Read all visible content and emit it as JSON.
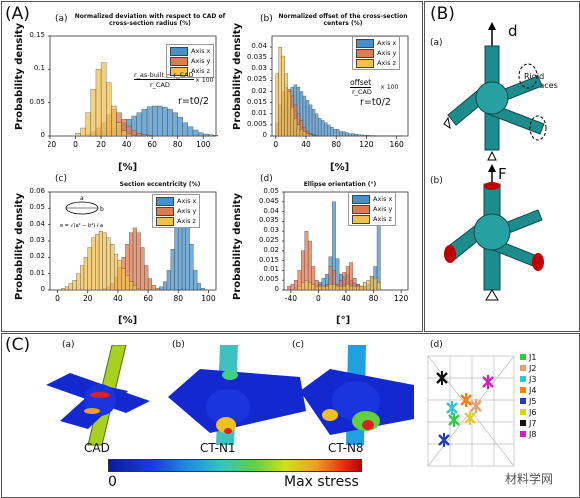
{
  "panel_labels": {
    "A": "(A)",
    "B": "(B)",
    "C": "(C)"
  },
  "sub_labels": {
    "a": "(a)",
    "b": "(b)",
    "c": "(c)",
    "d": "(d)"
  },
  "colors": {
    "x": "#4a90c8",
    "y": "#e07a50",
    "z": "#f0c050"
  },
  "legend": [
    "Axis x",
    "Axis y",
    "Axis z"
  ],
  "axes": {
    "ylabel": "Probability density",
    "xlabel_pct": "[%]",
    "xlabel_deg": "[°]"
  },
  "chart_data": [
    {
      "type": "bar",
      "title": "Normalized deviation with respect to CAD of cross-section radius (%)",
      "xlabel": "[%]",
      "ylabel": "Probability density",
      "xlim": [
        -20,
        110
      ],
      "ylim": [
        0,
        0.15
      ],
      "xticks": [
        "-20",
        "0",
        "20",
        "40",
        "60",
        "80",
        "100"
      ],
      "yticks": [
        "0",
        "0.05",
        "0.1",
        "0.15"
      ],
      "annotation": "r=t0/2",
      "formula": {
        "numerator": "r_as-built − r_CAD",
        "denominator": "r_CAD",
        "factor": "× 100"
      },
      "bin_start": -20,
      "bin_width": 4,
      "series": [
        {
          "name": "Axis x",
          "values": [
            0,
            0,
            0,
            0,
            0,
            0,
            0,
            0,
            0,
            0.002,
            0.005,
            0.008,
            0.012,
            0.016,
            0.02,
            0.025,
            0.03,
            0.035,
            0.04,
            0.044,
            0.045,
            0.045,
            0.043,
            0.04,
            0.035,
            0.028,
            0.02,
            0.014,
            0.009,
            0.005,
            0.003,
            0.002,
            0.001
          ]
        },
        {
          "name": "Axis y",
          "values": [
            0,
            0,
            0,
            0,
            0,
            0,
            0,
            0.002,
            0.006,
            0.012,
            0.02,
            0.032,
            0.04,
            0.035,
            0.025,
            0.015,
            0.008,
            0.004,
            0.002,
            0.001,
            0,
            0,
            0,
            0,
            0,
            0,
            0,
            0,
            0,
            0,
            0,
            0,
            0
          ]
        },
        {
          "name": "Axis z",
          "values": [
            0,
            0,
            0,
            0,
            0,
            0.004,
            0.012,
            0.035,
            0.07,
            0.1,
            0.11,
            0.08,
            0.045,
            0.02,
            0.008,
            0.003,
            0.001,
            0,
            0,
            0,
            0,
            0,
            0,
            0,
            0,
            0,
            0,
            0,
            0,
            0,
            0,
            0,
            0
          ]
        }
      ]
    },
    {
      "type": "bar",
      "title": "Normalized offset of the cross-section centers (%)",
      "xlabel": "[%]",
      "ylabel": "Probability density",
      "xlim": [
        -5,
        175
      ],
      "ylim": [
        0,
        0.045
      ],
      "xticks": [
        "0",
        "40",
        "80",
        "120",
        "160"
      ],
      "yticks": [
        "0",
        "0.005",
        "0.01",
        "0.015",
        "0.02",
        "0.025",
        "0.03",
        "0.035",
        "0.04"
      ],
      "annotation": "r=t0/2",
      "formula": {
        "numerator": "offset",
        "denominator": "r_CAD",
        "factor": "× 100"
      },
      "bin_start": 0,
      "bin_width": 4,
      "series": [
        {
          "name": "Axis x",
          "values": [
            0.003,
            0.008,
            0.012,
            0.016,
            0.02,
            0.022,
            0.023,
            0.022,
            0.02,
            0.018,
            0.016,
            0.014,
            0.012,
            0.01,
            0.008,
            0.007,
            0.006,
            0.005,
            0.004,
            0.003,
            0.003,
            0.002,
            0.002,
            0.0015,
            0.001,
            0.001,
            0.0008,
            0.0006,
            0.0005,
            0.0004,
            0.0003,
            0.0002,
            0.0002,
            0.0001,
            0.0001,
            0.0001,
            0.0001,
            0.0001,
            0.0001,
            0.0001,
            0.0001,
            0.0001
          ]
        },
        {
          "name": "Axis y",
          "values": [
            0.006,
            0.014,
            0.02,
            0.022,
            0.021,
            0.018,
            0.014,
            0.01,
            0.007,
            0.004,
            0.002,
            0.001,
            0.0005,
            0.0002,
            0,
            0,
            0,
            0,
            0,
            0,
            0,
            0,
            0,
            0,
            0,
            0,
            0,
            0,
            0,
            0,
            0,
            0,
            0,
            0,
            0,
            0,
            0,
            0,
            0,
            0,
            0,
            0
          ]
        },
        {
          "name": "Axis z",
          "values": [
            0.028,
            0.04,
            0.036,
            0.028,
            0.02,
            0.013,
            0.008,
            0.005,
            0.003,
            0.002,
            0.001,
            0.0005,
            0.0002,
            0,
            0,
            0,
            0,
            0,
            0,
            0,
            0,
            0,
            0,
            0,
            0,
            0,
            0,
            0,
            0,
            0,
            0,
            0,
            0,
            0,
            0,
            0,
            0,
            0,
            0,
            0,
            0,
            0
          ]
        }
      ]
    },
    {
      "type": "bar",
      "title": "Section eccentricity (%)",
      "xlabel": "[%]",
      "ylabel": "Probability density",
      "xlim": [
        -5,
        105
      ],
      "ylim": [
        0,
        0.06
      ],
      "xticks": [
        "0",
        "20",
        "40",
        "60",
        "80",
        "100"
      ],
      "yticks": [
        "0",
        "0.01",
        "0.02",
        "0.03",
        "0.04",
        "0.05",
        "0.06"
      ],
      "inset": {
        "a": "a",
        "b": "b",
        "e": "e = √(a² − b²) / a"
      },
      "bin_start": 0,
      "bin_width": 2.5,
      "series": [
        {
          "name": "Axis x",
          "values": [
            0,
            0,
            0,
            0,
            0,
            0,
            0,
            0,
            0,
            0,
            0,
            0,
            0,
            0,
            0,
            0,
            0,
            0,
            0,
            0,
            0,
            0,
            0,
            0,
            0,
            0,
            0,
            0.002,
            0.005,
            0.012,
            0.025,
            0.04,
            0.05,
            0.055,
            0.045,
            0.028,
            0.012,
            0.004,
            0.001,
            0
          ]
        },
        {
          "name": "Axis y",
          "values": [
            0,
            0,
            0,
            0,
            0,
            0,
            0,
            0,
            0,
            0,
            0,
            0,
            0.001,
            0.002,
            0.004,
            0.008,
            0.014,
            0.02,
            0.028,
            0.035,
            0.038,
            0.035,
            0.026,
            0.015,
            0.007,
            0.003,
            0.001,
            0,
            0,
            0,
            0,
            0,
            0,
            0,
            0,
            0,
            0,
            0,
            0,
            0
          ]
        },
        {
          "name": "Axis z",
          "values": [
            0,
            0.001,
            0.002,
            0.004,
            0.006,
            0.01,
            0.015,
            0.02,
            0.026,
            0.032,
            0.034,
            0.036,
            0.035,
            0.032,
            0.028,
            0.022,
            0.018,
            0.013,
            0.009,
            0.005,
            0.003,
            0.001,
            0,
            0,
            0,
            0,
            0,
            0,
            0,
            0,
            0,
            0,
            0,
            0,
            0,
            0,
            0,
            0,
            0,
            0
          ]
        }
      ]
    },
    {
      "type": "bar",
      "title": "Ellipse orientation (°)",
      "xlabel": "[°]",
      "ylabel": "Probability density",
      "xlim": [
        -50,
        130
      ],
      "ylim": [
        0,
        0.05
      ],
      "xticks": [
        "-40",
        "0",
        "40",
        "80",
        "120"
      ],
      "yticks": [
        "0",
        "0.005",
        "0.01",
        "0.015",
        "0.02",
        "0.025",
        "0.03",
        "0.035",
        "0.04",
        "0.045",
        "0.05"
      ],
      "bin_start": -45,
      "bin_width": 5,
      "series": [
        {
          "name": "Axis x",
          "values": [
            0,
            0,
            0,
            0,
            0,
            0,
            0,
            0.001,
            0.002,
            0.004,
            0.006,
            0.008,
            0.017,
            0.045,
            0.016,
            0.008,
            0.007,
            0.008,
            0.005,
            0.004,
            0.003,
            0.002,
            0.002,
            0.003,
            0.007,
            0.012,
            0.033,
            0
          ]
        },
        {
          "name": "Axis y",
          "values": [
            0.002,
            0.003,
            0.005,
            0.01,
            0.02,
            0.03,
            0.025,
            0.012,
            0.005,
            0.003,
            0.002,
            0.003,
            0.012,
            0.01,
            0.003,
            0.005,
            0.009,
            0.012,
            0.014,
            0.006,
            0.003,
            0.002,
            0.001,
            0,
            0,
            0,
            0,
            0
          ]
        },
        {
          "name": "Axis z",
          "values": [
            0,
            0,
            0.001,
            0.002,
            0.004,
            0.005,
            0.004,
            0.003,
            0.002,
            0.002,
            0.002,
            0.002,
            0.003,
            0.003,
            0.002,
            0.002,
            0.002,
            0.003,
            0.002,
            0.002,
            0.002,
            0.002,
            0.004,
            0.005,
            0.007,
            0.006,
            0.004,
            0
          ]
        }
      ]
    }
  ],
  "B": {
    "a_label": "d",
    "b_label": "F",
    "rigid": "Rigid surfaces"
  },
  "C": {
    "cad": "CAD",
    "ctn1": "CT-N1",
    "ctn8": "CT-N8",
    "scale_min": "0",
    "scale_max": "Max stress",
    "joints": [
      {
        "label": "J1",
        "color": "#2ecc40"
      },
      {
        "label": "J2",
        "color": "#e8a070"
      },
      {
        "label": "J3",
        "color": "#33c5d6"
      },
      {
        "label": "J4",
        "color": "#ff7f0e"
      },
      {
        "label": "J5",
        "color": "#1f3fbf"
      },
      {
        "label": "J6",
        "color": "#e0d020"
      },
      {
        "label": "J7",
        "color": "#111111"
      },
      {
        "label": "J8",
        "color": "#d020c0"
      }
    ],
    "watermark": "材料学网"
  }
}
